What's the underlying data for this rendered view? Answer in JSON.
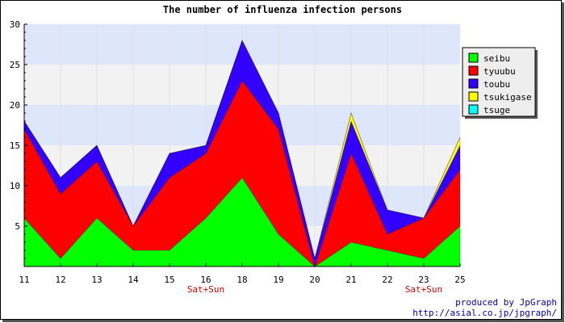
{
  "chart_data": {
    "type": "area",
    "stacked": true,
    "title": "The number of influenza infection persons",
    "x": [
      "11",
      "12",
      "13",
      "14",
      "15",
      "16",
      "18",
      "19",
      "20",
      "21",
      "22",
      "23",
      "25"
    ],
    "x_annotations": [
      {
        "x": "16",
        "text": "Sat+Sun"
      },
      {
        "x": "23",
        "text": "Sat+Sun"
      }
    ],
    "y_ticks": [
      5,
      10,
      15,
      20,
      25,
      30
    ],
    "ylim": [
      0,
      30
    ],
    "grid": "horizontal bands",
    "legend_position": "top-right",
    "series": [
      {
        "name": "seibu",
        "color": "#00ff00",
        "values": [
          6,
          1,
          6,
          2,
          2,
          6,
          11,
          4,
          0,
          3,
          2,
          1,
          5
        ]
      },
      {
        "name": "tyuubu",
        "color": "#ff0000",
        "values": [
          11,
          8,
          7,
          3,
          9,
          8,
          12,
          13,
          0,
          11,
          2,
          5,
          7
        ]
      },
      {
        "name": "toubu",
        "color": "#3300ff",
        "values": [
          1,
          2,
          2,
          0,
          3,
          1,
          5,
          2,
          1,
          4,
          3,
          0,
          3
        ]
      },
      {
        "name": "tsukigase",
        "color": "#ffff00",
        "values": [
          0,
          0,
          0,
          0,
          0,
          0,
          0,
          0,
          0,
          1,
          0,
          0,
          1
        ]
      },
      {
        "name": "tsuge",
        "color": "#00ffff",
        "values": [
          0,
          0,
          0,
          0,
          0,
          0,
          0,
          0,
          0,
          0,
          0,
          0,
          0
        ]
      }
    ]
  },
  "footer": {
    "credit_line1": "produced by JpGraph",
    "credit_line2": "http://asial.co.jp/jpgraph/"
  }
}
